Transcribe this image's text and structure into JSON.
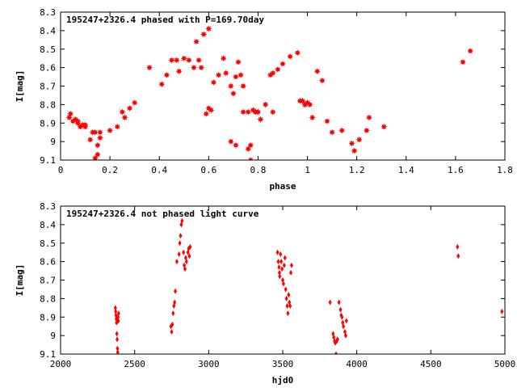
{
  "chart_data": [
    {
      "type": "scatter",
      "title": "195247+2326.4 phased with P=169.70day",
      "xlabel": "phase",
      "ylabel": "I[mag]",
      "xlim": [
        0,
        1.8
      ],
      "ylim": [
        8.3,
        9.1
      ],
      "y_inverted": true,
      "x_ticks": [
        "0",
        "0.2",
        "0.4",
        "0.6",
        "0.8",
        "1",
        "1.2",
        "1.4",
        "1.6",
        "1.8"
      ],
      "y_ticks": [
        "8.3",
        "8.4",
        "8.5",
        "8.6",
        "8.7",
        "8.8",
        "8.9",
        "9",
        "9.1"
      ],
      "marker": "star",
      "color": "#ff0000",
      "series": [
        {
          "x": [
            0.035,
            0.04,
            0.05,
            0.06,
            0.07,
            0.08,
            0.09,
            0.1,
            0.12,
            0.13,
            0.14,
            0.14,
            0.15,
            0.15,
            0.16,
            0.16,
            0.2,
            0.23,
            0.25,
            0.26,
            0.28,
            0.3,
            0.36,
            0.41,
            0.43,
            0.45,
            0.47,
            0.5,
            0.52,
            0.55,
            0.56,
            0.57,
            0.58,
            0.6,
            0.62,
            0.64,
            0.66,
            0.69,
            0.7,
            0.71,
            0.72,
            0.73,
            0.74,
            0.76,
            0.77,
            0.79,
            0.81,
            0.85,
            0.86,
            0.88,
            0.9,
            0.93,
            0.96,
            0.98,
            0.99,
            1.0,
            1.02,
            1.04,
            1.06,
            1.08,
            1.1,
            1.14,
            1.18,
            1.19,
            1.21,
            1.24,
            1.25,
            1.31,
            1.63,
            1.66,
            0.07,
            0.1,
            0.54,
            0.59,
            0.61,
            0.74,
            0.78,
            0.8,
            0.76,
            0.83,
            0.86,
            0.97,
            0.99,
            1.01,
            0.48,
            0.6,
            0.67,
            0.69,
            0.71,
            0.77,
            0.79
          ],
          "y": [
            8.87,
            8.85,
            8.89,
            8.88,
            8.9,
            8.92,
            8.91,
            8.92,
            8.99,
            8.95,
            8.95,
            9.09,
            9.02,
            9.07,
            8.95,
            8.98,
            8.94,
            8.92,
            8.84,
            8.87,
            8.82,
            8.79,
            8.6,
            8.69,
            8.64,
            8.56,
            8.56,
            8.55,
            8.56,
            8.46,
            8.56,
            8.6,
            8.42,
            8.39,
            8.68,
            8.64,
            8.55,
            8.7,
            8.74,
            8.65,
            8.57,
            8.64,
            8.7,
            8.84,
            9.1,
            8.84,
            8.88,
            8.64,
            8.63,
            8.61,
            8.58,
            8.54,
            8.52,
            8.78,
            8.8,
            8.79,
            8.87,
            8.62,
            8.67,
            8.89,
            8.95,
            8.94,
            9.01,
            9.05,
            8.99,
            8.94,
            8.87,
            8.92,
            8.57,
            8.51,
            8.89,
            8.91,
            8.6,
            8.85,
            8.83,
            8.84,
            8.83,
            8.84,
            9.04,
            8.8,
            8.84,
            8.78,
            8.8,
            8.8,
            8.62,
            8.82,
            8.63,
            9.0,
            9.02,
            9.02,
            8.84
          ]
        }
      ]
    },
    {
      "type": "scatter",
      "title": "195247+2326.4 not phased light curve",
      "xlabel": "hjd0",
      "ylabel": "I[mag]",
      "xlim": [
        2000,
        5000
      ],
      "ylim": [
        8.3,
        9.1
      ],
      "y_inverted": true,
      "x_ticks": [
        "2000",
        "2500",
        "3000",
        "3500",
        "4000",
        "4500",
        "5000"
      ],
      "y_ticks": [
        "8.3",
        "8.4",
        "8.5",
        "8.6",
        "8.7",
        "8.8",
        "8.9",
        "9",
        "9.1"
      ],
      "marker": "diamond",
      "color": "#ff0000",
      "series": [
        {
          "x": [
            2370,
            2372,
            2374,
            2376,
            2378,
            2380,
            2382,
            2384,
            2386,
            2388,
            2390,
            2392,
            2745,
            2750,
            2755,
            2760,
            2765,
            2770,
            2775,
            2785,
            2800,
            2805,
            2810,
            2815,
            2820,
            2830,
            2835,
            2840,
            2845,
            2850,
            2860,
            2865,
            2870,
            2875,
            3465,
            3470,
            3475,
            3478,
            3480,
            3485,
            3490,
            3495,
            3500,
            3505,
            3510,
            3515,
            3520,
            3525,
            3530,
            3535,
            3540,
            3545,
            3550,
            3555,
            3560,
            3820,
            3840,
            3845,
            3850,
            3855,
            3860,
            3865,
            3870,
            3880,
            3890,
            3895,
            3900,
            3905,
            3910,
            3920,
            3925,
            3930,
            4680,
            4685,
            4980
          ],
          "y": [
            8.85,
            8.87,
            8.89,
            8.91,
            8.93,
            8.99,
            9.02,
            9.07,
            9.09,
            8.9,
            8.92,
            8.88,
            8.95,
            8.98,
            8.94,
            8.88,
            8.84,
            8.82,
            8.76,
            8.6,
            8.56,
            8.5,
            8.46,
            8.4,
            8.38,
            8.55,
            8.62,
            8.64,
            8.58,
            8.6,
            8.55,
            8.53,
            8.57,
            8.52,
            8.55,
            8.6,
            8.63,
            8.66,
            8.68,
            8.56,
            8.6,
            8.64,
            8.7,
            8.72,
            8.62,
            8.58,
            8.75,
            8.8,
            8.84,
            8.88,
            8.78,
            8.82,
            8.84,
            8.66,
            8.62,
            8.82,
            8.99,
            9.01,
            9.03,
            9.04,
            9.1,
            9.03,
            9.02,
            8.82,
            8.86,
            8.89,
            8.9,
            8.93,
            8.95,
            8.98,
            9.0,
            8.92,
            8.52,
            8.57,
            8.87
          ]
        }
      ]
    }
  ]
}
